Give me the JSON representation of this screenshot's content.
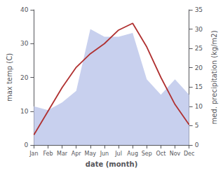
{
  "chart_data": {
    "type": "line",
    "categories": [
      "Jan",
      "Feb",
      "Mar",
      "Apr",
      "May",
      "Jun",
      "Jul",
      "Aug",
      "Sep",
      "Oct",
      "Nov",
      "Dec"
    ],
    "xlabel": "date (month)",
    "ylabel": "max temp (C)",
    "y2label": "med. precipitation (kg/m2)",
    "series": [
      {
        "type": "area",
        "axis": "y2",
        "color": "#c8d0ee",
        "values": [
          10,
          9,
          11,
          14,
          30,
          28,
          28,
          29,
          17,
          13,
          17,
          13
        ]
      },
      {
        "type": "line",
        "color": "#b03030",
        "values": [
          3,
          10,
          17,
          23,
          27,
          30,
          34,
          36,
          29,
          20,
          12,
          6
        ]
      }
    ],
    "ylim": [
      0,
      40
    ],
    "yticks": [
      0,
      10,
      20,
      30,
      40
    ],
    "y2lim": [
      0,
      35
    ],
    "y2ticks": [
      0,
      5,
      10,
      15,
      20,
      25,
      30,
      35
    ],
    "grid": false
  }
}
